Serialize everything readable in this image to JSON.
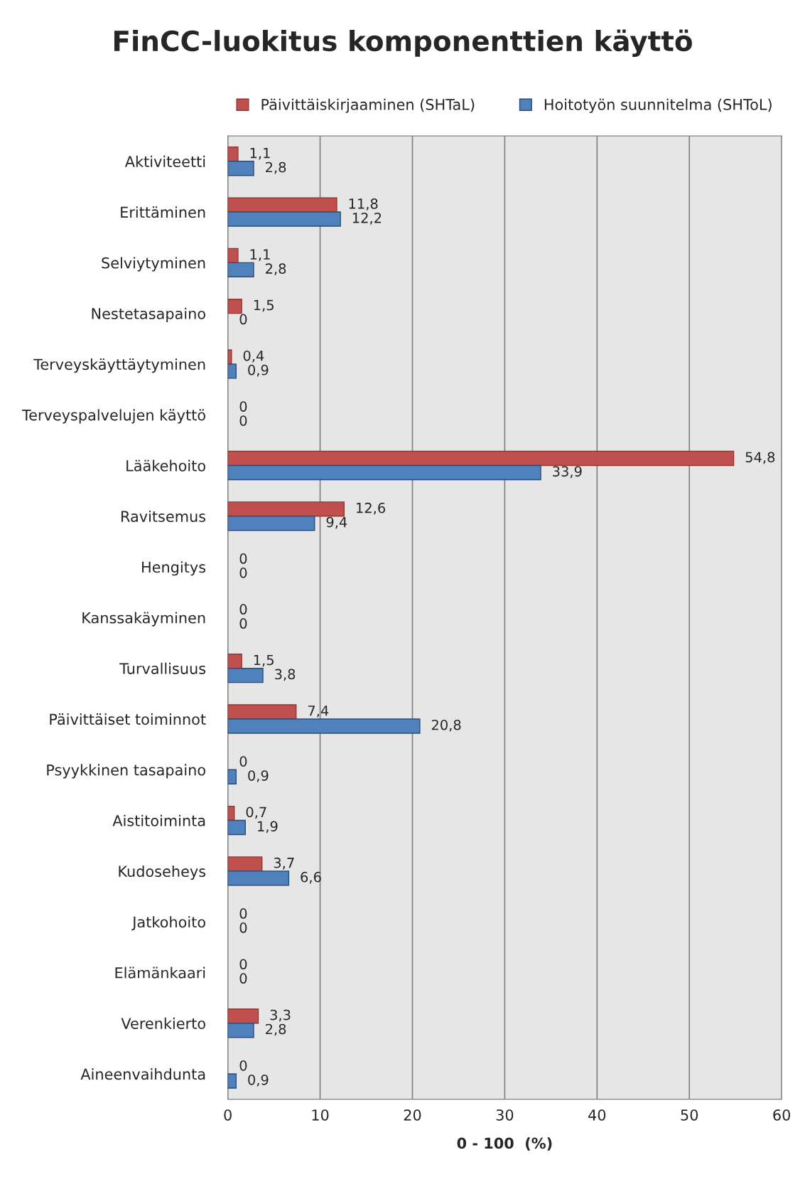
{
  "chart_data": {
    "type": "bar",
    "orientation": "horizontal",
    "title": "FinCC-luokitus komponenttien käyttö",
    "xlabel": "0 - 100  (%)",
    "categories": [
      "Aktiviteetti",
      "Erittäminen",
      "Selviytyminen",
      "Nestetasapaino",
      "Terveyskäyttäytyminen",
      "Terveyspalvelujen käyttö",
      "Lääkehoito",
      "Ravitsemus",
      "Hengitys",
      "Kanssakäyminen",
      "Turvallisuus",
      "Päivittäiset toiminnot",
      "Psyykkinen tasapaino",
      "Aistitoiminta",
      "Kudoseheys",
      "Jatkohoito",
      "Elämänkaari",
      "Verenkierto",
      "Aineenvaihdunta"
    ],
    "series": [
      {
        "name": "Päivittäiskirjaaminen (SHTaL)",
        "color": "#c0504d",
        "values": [
          1.1,
          11.8,
          1.1,
          1.5,
          0.4,
          0,
          54.8,
          12.6,
          0,
          0,
          1.5,
          7.4,
          0,
          0.7,
          3.7,
          0,
          0,
          3.3,
          0
        ],
        "value_labels": [
          "1,1",
          "11,8",
          "1,1",
          "1,5",
          "0,4",
          "0",
          "54,8",
          "12,6",
          "0",
          "0",
          "1,5",
          "7,4",
          "0",
          "0,7",
          "3,7",
          "0",
          "0",
          "3,3",
          "0"
        ]
      },
      {
        "name": "Hoitotyön suunnitelma (SHToL)",
        "color": "#4f81bd",
        "values": [
          2.8,
          12.2,
          2.8,
          0,
          0.9,
          0,
          33.9,
          9.4,
          0,
          0,
          3.8,
          20.8,
          0.9,
          1.9,
          6.6,
          0,
          0,
          2.8,
          0.9
        ],
        "value_labels": [
          "2,8",
          "12,2",
          "2,8",
          "0",
          "0,9",
          "0",
          "33,9",
          "9,4",
          "0",
          "0",
          "3,8",
          "20,8",
          "0,9",
          "1,9",
          "6,6",
          "0",
          "0",
          "2,8",
          "0,9"
        ]
      }
    ],
    "xlim": [
      0,
      60
    ],
    "xticks": [
      0,
      10,
      20,
      30,
      40,
      50,
      60
    ],
    "grid": "x",
    "legend": "top"
  }
}
